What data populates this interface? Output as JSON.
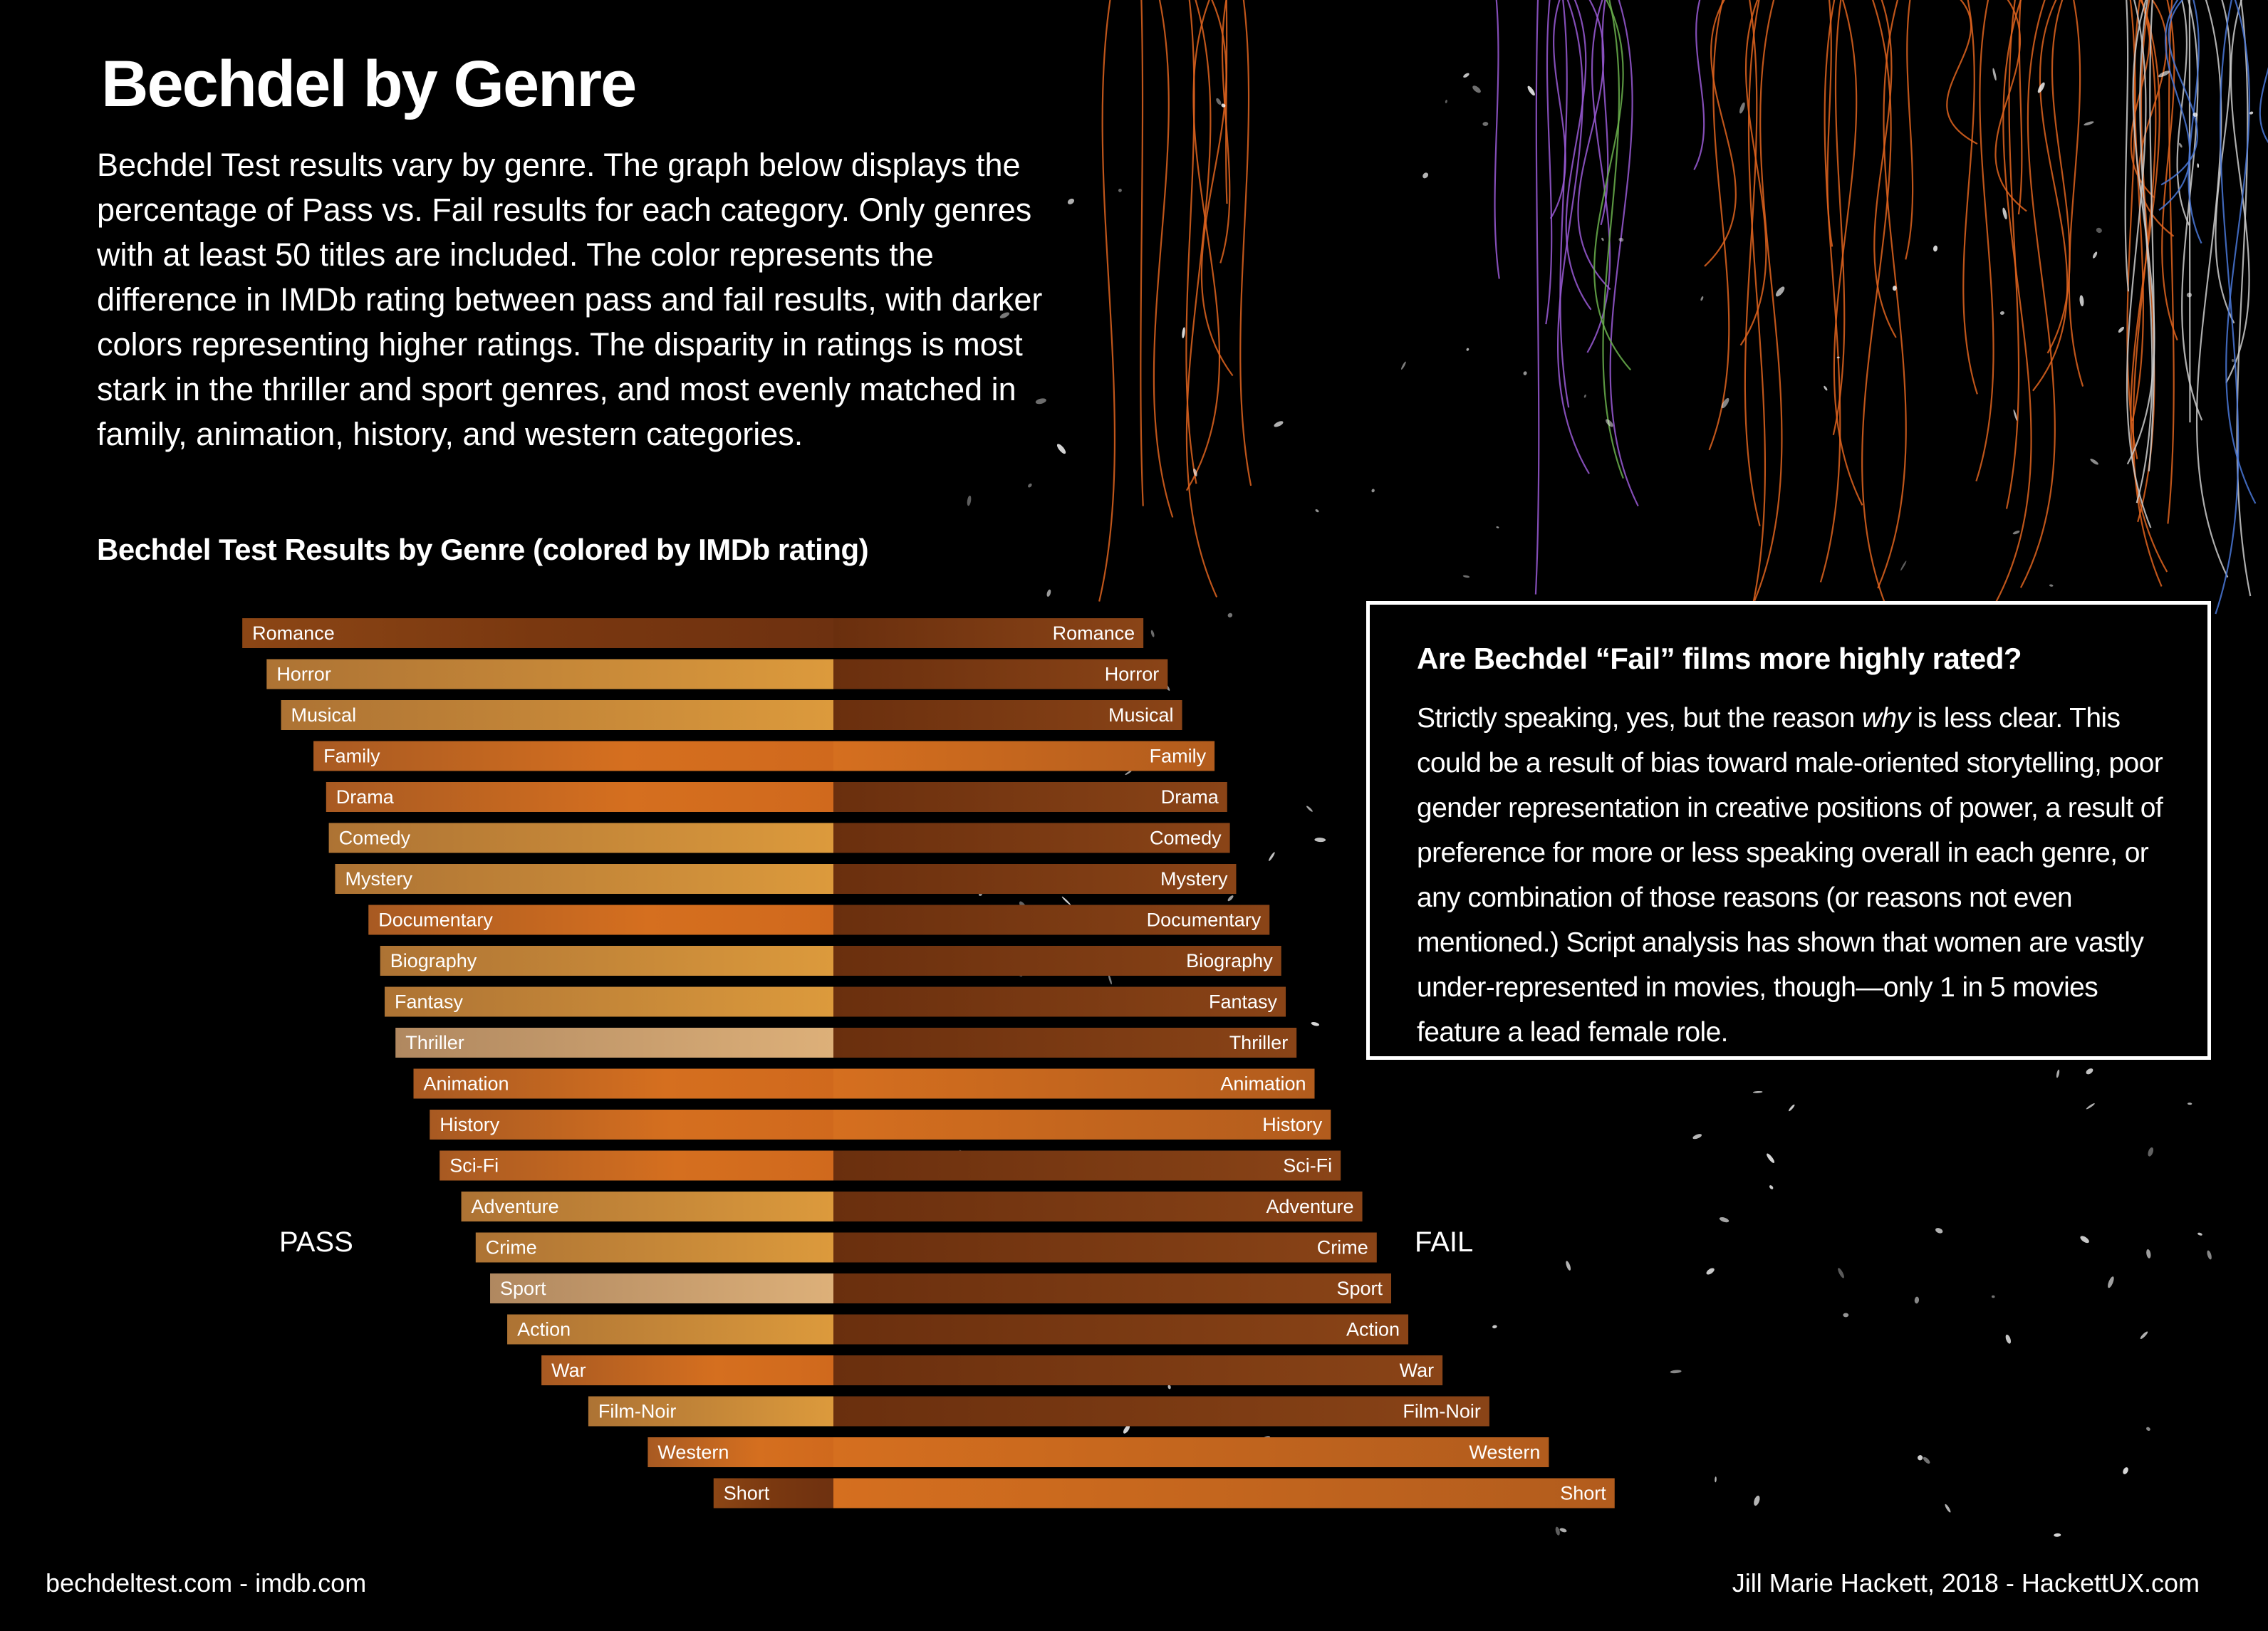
{
  "header": {
    "title": "Bechdel by Genre",
    "intro": "Bechdel Test results vary by genre. The graph below displays the percentage of Pass vs. Fail results for each category. Only genres with at least 50 titles are included. The color represents the difference in IMDb rating between pass and fail results, with darker colors representing higher ratings. The disparity in ratings is most stark in the thriller and sport genres, and most evenly matched in family, animation, history, and western categories.",
    "chart_heading": "Bechdel Test Results by Genre (colored by IMDb rating)"
  },
  "labels": {
    "pass": "PASS",
    "fail": "FAIL"
  },
  "callout": {
    "title": "Are Bechdel “Fail” films more highly rated?",
    "body_before": "Strictly speaking, yes, but the reason ",
    "body_em": "why",
    "body_after": " is less clear. This could be a result of bias toward male-oriented storytelling, poor gender representation in creative positions of power, a result of preference for more or less speaking overall in each genre, or any combination of those reasons (or reasons not even mentioned.) Script analysis has shown that women are vastly under-represented in movies, though—only 1 in 5 movies feature a lead female role."
  },
  "footer": {
    "sources": "bechdeltest.com - imdb.com",
    "credit": "Jill Marie Hackett, 2018 - HackettUX.com"
  },
  "chart_data": {
    "type": "bar",
    "orientation": "horizontal-diverging",
    "value_unit": "percent",
    "categories": [
      "Romance",
      "Horror",
      "Musical",
      "Family",
      "Drama",
      "Comedy",
      "Mystery",
      "Documentary",
      "Biography",
      "Fantasy",
      "Thriller",
      "Animation",
      "History",
      "Sci-Fi",
      "Adventure",
      "Crime",
      "Sport",
      "Action",
      "War",
      "Film-Noir",
      "Western",
      "Short"
    ],
    "series": [
      {
        "name": "PASS",
        "values": [
          65.6,
          62.9,
          61.3,
          57.7,
          56.3,
          56.0,
          55.3,
          51.6,
          50.3,
          49.8,
          48.6,
          46.6,
          44.8,
          43.7,
          41.3,
          39.7,
          38.1,
          36.2,
          32.4,
          27.2,
          20.6,
          13.3
        ]
      },
      {
        "name": "FAIL",
        "values": [
          34.4,
          37.1,
          38.7,
          42.3,
          43.7,
          44.0,
          44.7,
          48.4,
          49.7,
          50.2,
          51.4,
          53.4,
          55.2,
          56.3,
          58.7,
          60.3,
          61.9,
          63.8,
          67.6,
          72.8,
          79.4,
          86.7
        ]
      }
    ],
    "color_encoding": "difference in IMDb rating between pass and fail results; darker = higher rating",
    "colors": {
      "dark": "#7a3810",
      "mid": "#d0691d",
      "light": "#d9a868"
    },
    "bar_shades": [
      {
        "pass": "dark",
        "fail": "dark"
      },
      {
        "pass": "light",
        "fail": "dark"
      },
      {
        "pass": "light",
        "fail": "dark"
      },
      {
        "pass": "mid",
        "fail": "mid"
      },
      {
        "pass": "mid",
        "fail": "dark"
      },
      {
        "pass": "light",
        "fail": "dark"
      },
      {
        "pass": "light",
        "fail": "dark"
      },
      {
        "pass": "mid",
        "fail": "dark"
      },
      {
        "pass": "light",
        "fail": "dark"
      },
      {
        "pass": "light",
        "fail": "dark"
      },
      {
        "pass": "pale",
        "fail": "dark"
      },
      {
        "pass": "mid",
        "fail": "mid"
      },
      {
        "pass": "mid",
        "fail": "mid"
      },
      {
        "pass": "mid",
        "fail": "dark"
      },
      {
        "pass": "light",
        "fail": "dark"
      },
      {
        "pass": "light",
        "fail": "dark"
      },
      {
        "pass": "pale",
        "fail": "dark"
      },
      {
        "pass": "light",
        "fail": "dark"
      },
      {
        "pass": "mid",
        "fail": "dark"
      },
      {
        "pass": "light",
        "fail": "dark"
      },
      {
        "pass": "mid",
        "fail": "mid"
      },
      {
        "pass": "dark",
        "fail": "mid"
      }
    ]
  }
}
